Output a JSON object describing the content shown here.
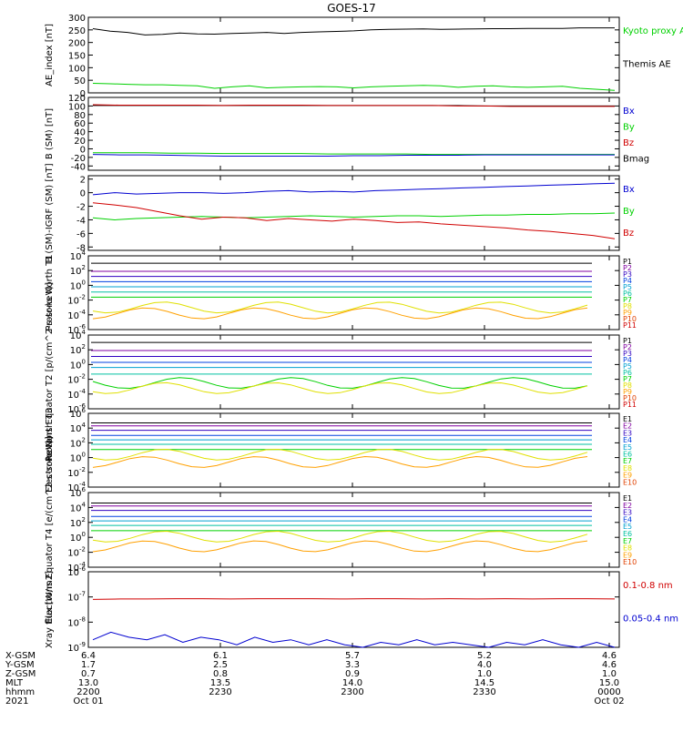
{
  "title": "GOES-17",
  "colors": {
    "black": "#000000",
    "green": "#00d000",
    "blue": "#0000d0",
    "red": "#d00000",
    "p_palette": [
      "#000000",
      "#8000a0",
      "#3000c0",
      "#0040e0",
      "#00a0d0",
      "#00c0a0",
      "#00d000",
      "#e0e000",
      "#ffa000",
      "#e04000",
      "#d00000"
    ],
    "e_palette": [
      "#000000",
      "#8000a0",
      "#3000c0",
      "#0040e0",
      "#00a0d0",
      "#00c0a0",
      "#00d000",
      "#e0e000",
      "#ffa000",
      "#e04000",
      "#d00000"
    ]
  },
  "chart_data": [
    {
      "type": "line",
      "ylabel": "AE_index [nT]",
      "ylim": [
        0,
        300
      ],
      "ticks": [
        "0",
        "50",
        "100",
        "150",
        "200",
        "250",
        "300"
      ],
      "legend": [
        "Kyoto proxy AE",
        "Themis AE"
      ],
      "legend_colors": [
        "#00d000",
        "#000000"
      ],
      "series": [
        {
          "name": "Themis AE",
          "color": "#000000",
          "values": [
            255,
            245,
            240,
            230,
            232,
            238,
            234,
            233,
            236,
            238,
            240,
            236,
            240,
            242,
            244,
            246,
            250,
            252,
            253,
            254,
            252,
            253,
            254,
            255,
            255,
            256,
            256,
            256,
            258,
            258,
            258
          ]
        },
        {
          "name": "Kyoto proxy AE",
          "color": "#00d000",
          "values": [
            38,
            36,
            34,
            32,
            32,
            30,
            28,
            18,
            24,
            28,
            20,
            22,
            24,
            25,
            24,
            20,
            24,
            26,
            28,
            30,
            28,
            22,
            26,
            28,
            24,
            22,
            24,
            26,
            18,
            14,
            10
          ]
        }
      ]
    },
    {
      "type": "line",
      "ylabel": "B (SM) [nT]",
      "ylim": [
        -50,
        120
      ],
      "ticks": [
        "-40",
        "-20",
        "0",
        "20",
        "40",
        "60",
        "80",
        "100",
        "120"
      ],
      "legend": [
        "Bx",
        "By",
        "Bz",
        "Bmag"
      ],
      "legend_colors": [
        "#0000d0",
        "#00d000",
        "#d00000",
        "#000000"
      ],
      "series": [
        {
          "name": "Bmag",
          "color": "#000000",
          "values": [
            101,
            101,
            101,
            101,
            101,
            101,
            101,
            101,
            101,
            101,
            101,
            101,
            101,
            101,
            101,
            100,
            100,
            100,
            100,
            100,
            100
          ]
        },
        {
          "name": "Bz",
          "color": "#d00000",
          "values": [
            103,
            102,
            102,
            102,
            102,
            101,
            102,
            102,
            102,
            101,
            101,
            101,
            101,
            101,
            100,
            100,
            99,
            99,
            99,
            99,
            99
          ]
        },
        {
          "name": "By",
          "color": "#00d000",
          "values": [
            -9,
            -9,
            -9,
            -10,
            -10,
            -11,
            -11,
            -11,
            -11,
            -12,
            -12,
            -12,
            -12,
            -13,
            -13,
            -13,
            -13,
            -13,
            -13,
            -13,
            -13
          ]
        },
        {
          "name": "Bx",
          "color": "#0000d0",
          "values": [
            -13,
            -14,
            -14,
            -15,
            -16,
            -17,
            -17,
            -17,
            -17,
            -17,
            -16,
            -16,
            -15,
            -15,
            -15,
            -14,
            -14,
            -14,
            -14,
            -14,
            -14
          ]
        }
      ]
    },
    {
      "type": "line",
      "ylabel": "B (SM)-IGRF (SM) [nT]",
      "ylim": [
        -8.5,
        2.5
      ],
      "ticks": [
        "-8",
        "-6",
        "-4",
        "-2",
        "0",
        "2"
      ],
      "legend": [
        "Bx",
        "By",
        "Bz"
      ],
      "legend_colors": [
        "#0000d0",
        "#00d000",
        "#d00000"
      ],
      "series": [
        {
          "name": "Bx",
          "color": "#0000d0",
          "values": [
            -0.3,
            0.0,
            -0.2,
            -0.1,
            0.0,
            0.0,
            -0.1,
            0.0,
            0.2,
            0.3,
            0.1,
            0.2,
            0.1,
            0.3,
            0.4,
            0.5,
            0.6,
            0.7,
            0.8,
            0.9,
            1.0,
            1.1,
            1.2,
            1.3,
            1.4
          ]
        },
        {
          "name": "By",
          "color": "#00d000",
          "values": [
            -3.7,
            -4.0,
            -3.8,
            -3.7,
            -3.6,
            -3.5,
            -3.6,
            -3.7,
            -3.6,
            -3.5,
            -3.4,
            -3.5,
            -3.6,
            -3.5,
            -3.4,
            -3.4,
            -3.5,
            -3.4,
            -3.3,
            -3.3,
            -3.2,
            -3.2,
            -3.1,
            -3.1,
            -3.0
          ]
        },
        {
          "name": "Bz",
          "color": "#d00000",
          "values": [
            -1.5,
            -1.8,
            -2.2,
            -2.8,
            -3.4,
            -3.9,
            -3.6,
            -3.7,
            -4.1,
            -3.8,
            -4.0,
            -4.2,
            -3.9,
            -4.1,
            -4.4,
            -4.3,
            -4.6,
            -4.8,
            -5.0,
            -5.2,
            -5.5,
            -5.7,
            -6.0,
            -6.3,
            -6.8
          ]
        }
      ]
    },
    {
      "type": "line",
      "ylabel": "Protons North T1",
      "ylim": [
        "1e-6",
        "1e4"
      ],
      "scale": "log",
      "ticks": [
        "10^4",
        "10^2",
        "10^0",
        "10^-2",
        "10^-4",
        "10^-6"
      ],
      "legend": [
        "P1",
        "P2",
        "P3",
        "P4",
        "P5",
        "P6",
        "P7",
        "P8",
        "P9",
        "P10",
        "P11"
      ],
      "levels_log10": [
        3.0,
        1.9,
        1.2,
        0.5,
        -0.2,
        -0.9,
        -1.6,
        -3.0,
        -3.8
      ]
    },
    {
      "type": "line",
      "ylabel": "Protons Equator T2 [p/(cm^2-s-sr-keV)]",
      "ylim": [
        "1e-6",
        "1e4"
      ],
      "scale": "log",
      "ticks": [
        "10^4",
        "10^2",
        "10^0",
        "10^-2",
        "10^-4",
        "10^-6"
      ],
      "legend": [
        "P1",
        "P2",
        "P3",
        "P4",
        "P5",
        "P6",
        "P7",
        "P8",
        "P9",
        "P10",
        "P11"
      ],
      "levels_log10": [
        3.0,
        1.9,
        1.1,
        0.3,
        -0.4,
        -1.3,
        -2.5,
        -3.2
      ]
    },
    {
      "type": "line",
      "ylabel": "Electrons North T3",
      "ylim": [
        "1e-4",
        "1e6"
      ],
      "scale": "log",
      "ticks": [
        "10^6",
        "10^4",
        "10^2",
        "10^0",
        "10^-2",
        "10^-4"
      ],
      "legend": [
        "E1",
        "E2",
        "E3",
        "E4",
        "E5",
        "E6",
        "E7",
        "E8",
        "E9",
        "E10"
      ],
      "levels_log10": [
        4.7,
        4.3,
        3.7,
        3.0,
        2.4,
        1.8,
        1.1,
        0.4,
        -0.6
      ]
    },
    {
      "type": "line",
      "ylabel": "Electrons Equator T4 [e/(cm^2-s-sr-keV)]",
      "ylim": [
        "1e-4",
        "1e6"
      ],
      "scale": "log",
      "ticks": [
        "10^6",
        "10^4",
        "10^2",
        "10^0",
        "10^-2",
        "10^-4"
      ],
      "legend": [
        "E1",
        "E2",
        "E3",
        "E4",
        "E5",
        "E6",
        "E7",
        "E8",
        "E9",
        "E10"
      ],
      "levels_log10": [
        4.6,
        4.2,
        3.6,
        2.8,
        2.2,
        1.6,
        0.9,
        0.1,
        -1.2
      ]
    },
    {
      "type": "line",
      "ylabel": "Xray flux [W/m2]",
      "ylim": [
        "1e-9",
        "1e-6"
      ],
      "scale": "log",
      "ticks": [
        "10^-6",
        "10^-7",
        "10^-8",
        "10^-9"
      ],
      "legend": [
        "0.1-0.8 nm",
        "0.05-0.4 nm"
      ],
      "legend_colors": [
        "#d00000",
        "#0000d0"
      ],
      "series": [
        {
          "name": "0.1-0.8 nm",
          "color": "#d00000",
          "values_log10": [
            -7.1,
            -7.08,
            -7.08,
            -7.07,
            -7.07,
            -7.08,
            -7.07,
            -7.07,
            -7.07,
            -7.08,
            -7.07,
            -7.07,
            -7.08,
            -7.07,
            -7.08,
            -7.07,
            -7.08,
            -7.07,
            -7.07,
            -7.08
          ]
        },
        {
          "name": "0.05-0.4 nm",
          "color": "#0000d0",
          "values_log10": [
            -8.7,
            -8.4,
            -8.6,
            -8.7,
            -8.5,
            -8.8,
            -8.6,
            -8.7,
            -8.9,
            -8.6,
            -8.8,
            -8.7,
            -8.9,
            -8.7,
            -8.9,
            -9.0,
            -8.8,
            -8.9,
            -8.7,
            -8.9,
            -8.8,
            -8.9,
            -9.0,
            -8.8,
            -8.9,
            -8.7,
            -8.9,
            -9.0,
            -8.8,
            -9.0
          ]
        }
      ]
    }
  ],
  "x_axis": {
    "row_labels": [
      "X-GSM",
      "Y-GSM",
      "Z-GSM",
      "MLT",
      "hhmm",
      "2021"
    ],
    "columns": [
      [
        "6.4",
        "1.7",
        "0.7",
        "13.0",
        "2200",
        "Oct 01"
      ],
      [
        "6.1",
        "2.5",
        "0.8",
        "13.5",
        "2230",
        ""
      ],
      [
        "5.7",
        "3.3",
        "0.9",
        "14.0",
        "2300",
        ""
      ],
      [
        "5.2",
        "4.0",
        "1.0",
        "14.5",
        "2330",
        ""
      ],
      [
        "4.6",
        "4.6",
        "1.0",
        "15.0",
        "0000",
        "Oct 02"
      ]
    ]
  }
}
